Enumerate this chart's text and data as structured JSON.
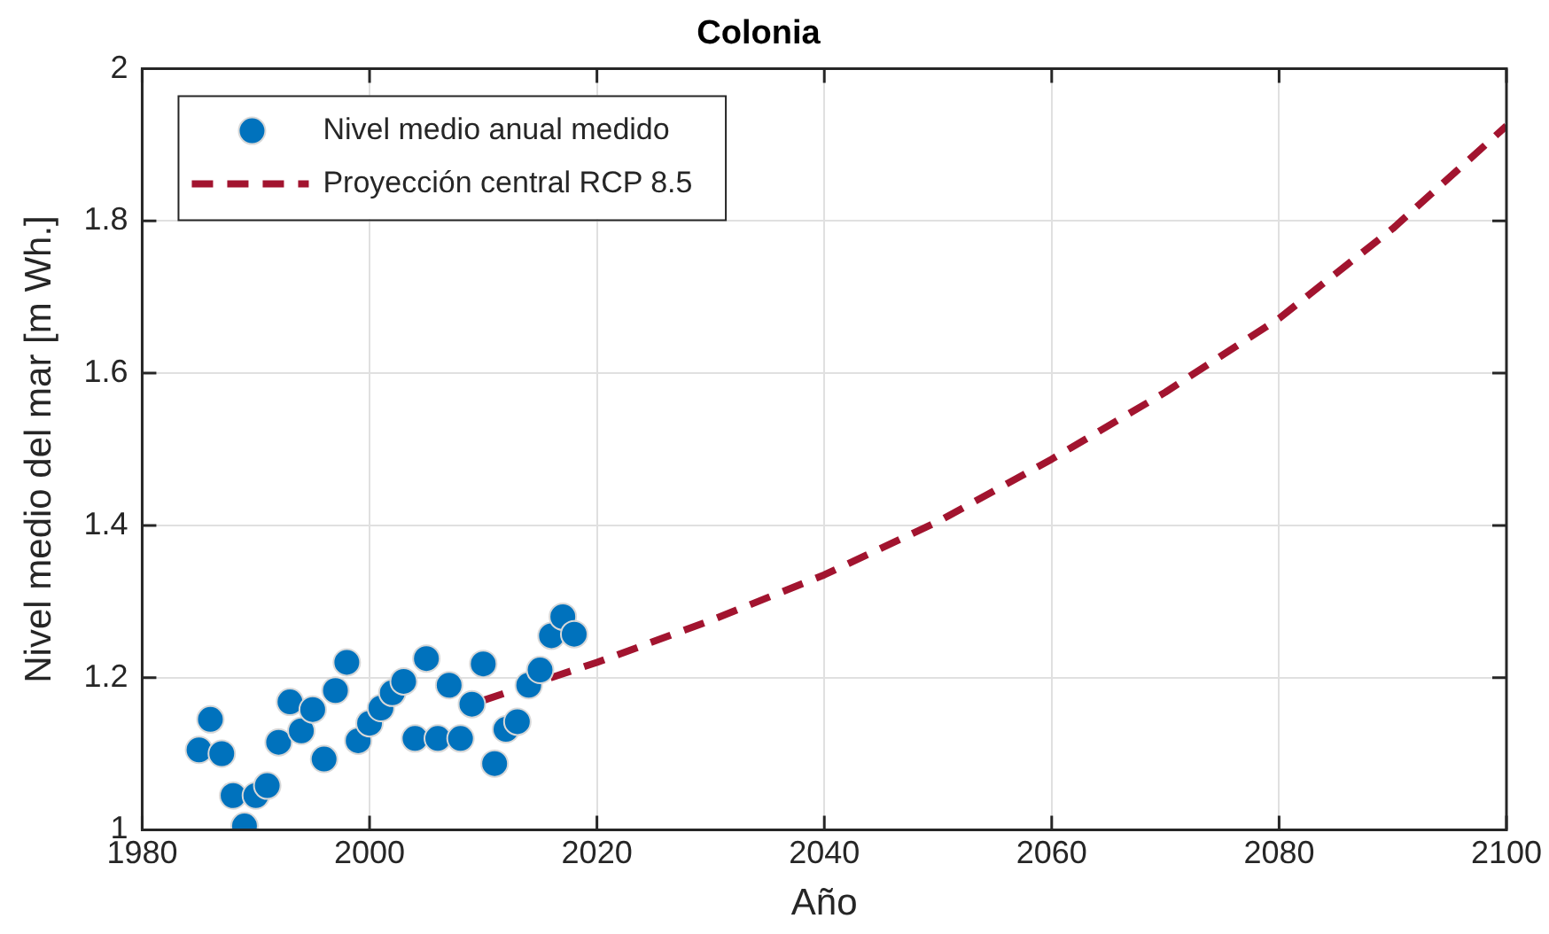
{
  "chart_data": {
    "type": "scatter",
    "title": "Colonia",
    "xlabel": "Año",
    "ylabel": "Nivel medio del mar [m Wh.]",
    "xlim": [
      1980,
      2100
    ],
    "xticks": [
      1980,
      2000,
      2020,
      2040,
      2060,
      2080,
      2100
    ],
    "ylim": [
      1,
      2
    ],
    "yticks": [
      1,
      1.2,
      1.4,
      1.6,
      1.8,
      2
    ],
    "grid": true,
    "legend": "top left",
    "series": [
      {
        "name": "Nivel medio anual medido",
        "color": "#0072bd",
        "marker": "circle",
        "x": [
          1985,
          1986,
          1987,
          1988,
          1989,
          1990,
          1991,
          1992,
          1993,
          1994,
          1995,
          1996,
          1997,
          1998,
          1999,
          2000,
          2001,
          2002,
          2003,
          2004,
          2005,
          2006,
          2007,
          2008,
          2009,
          2010,
          2011,
          2012,
          2013,
          2014,
          2015,
          2016,
          2017,
          2018
        ],
        "values": [
          1.105,
          1.145,
          1.1,
          1.045,
          1.005,
          1.045,
          1.058,
          1.115,
          1.168,
          1.13,
          1.158,
          1.093,
          1.183,
          1.22,
          1.117,
          1.14,
          1.16,
          1.18,
          1.195,
          1.12,
          1.225,
          1.12,
          1.19,
          1.12,
          1.165,
          1.218,
          1.087,
          1.132,
          1.142,
          1.19,
          1.21,
          1.255,
          1.28,
          1.257
        ]
      },
      {
        "name": "Proyección central RCP 8.5",
        "type": "line",
        "color": "#a2142f",
        "line_style": "dashed",
        "marker": "none",
        "x": [
          2010,
          2020,
          2030,
          2040,
          2050,
          2060,
          2070,
          2080,
          2090,
          2100
        ],
        "values": [
          1.17,
          1.22,
          1.275,
          1.335,
          1.405,
          1.487,
          1.575,
          1.672,
          1.79,
          1.925
        ]
      }
    ]
  }
}
